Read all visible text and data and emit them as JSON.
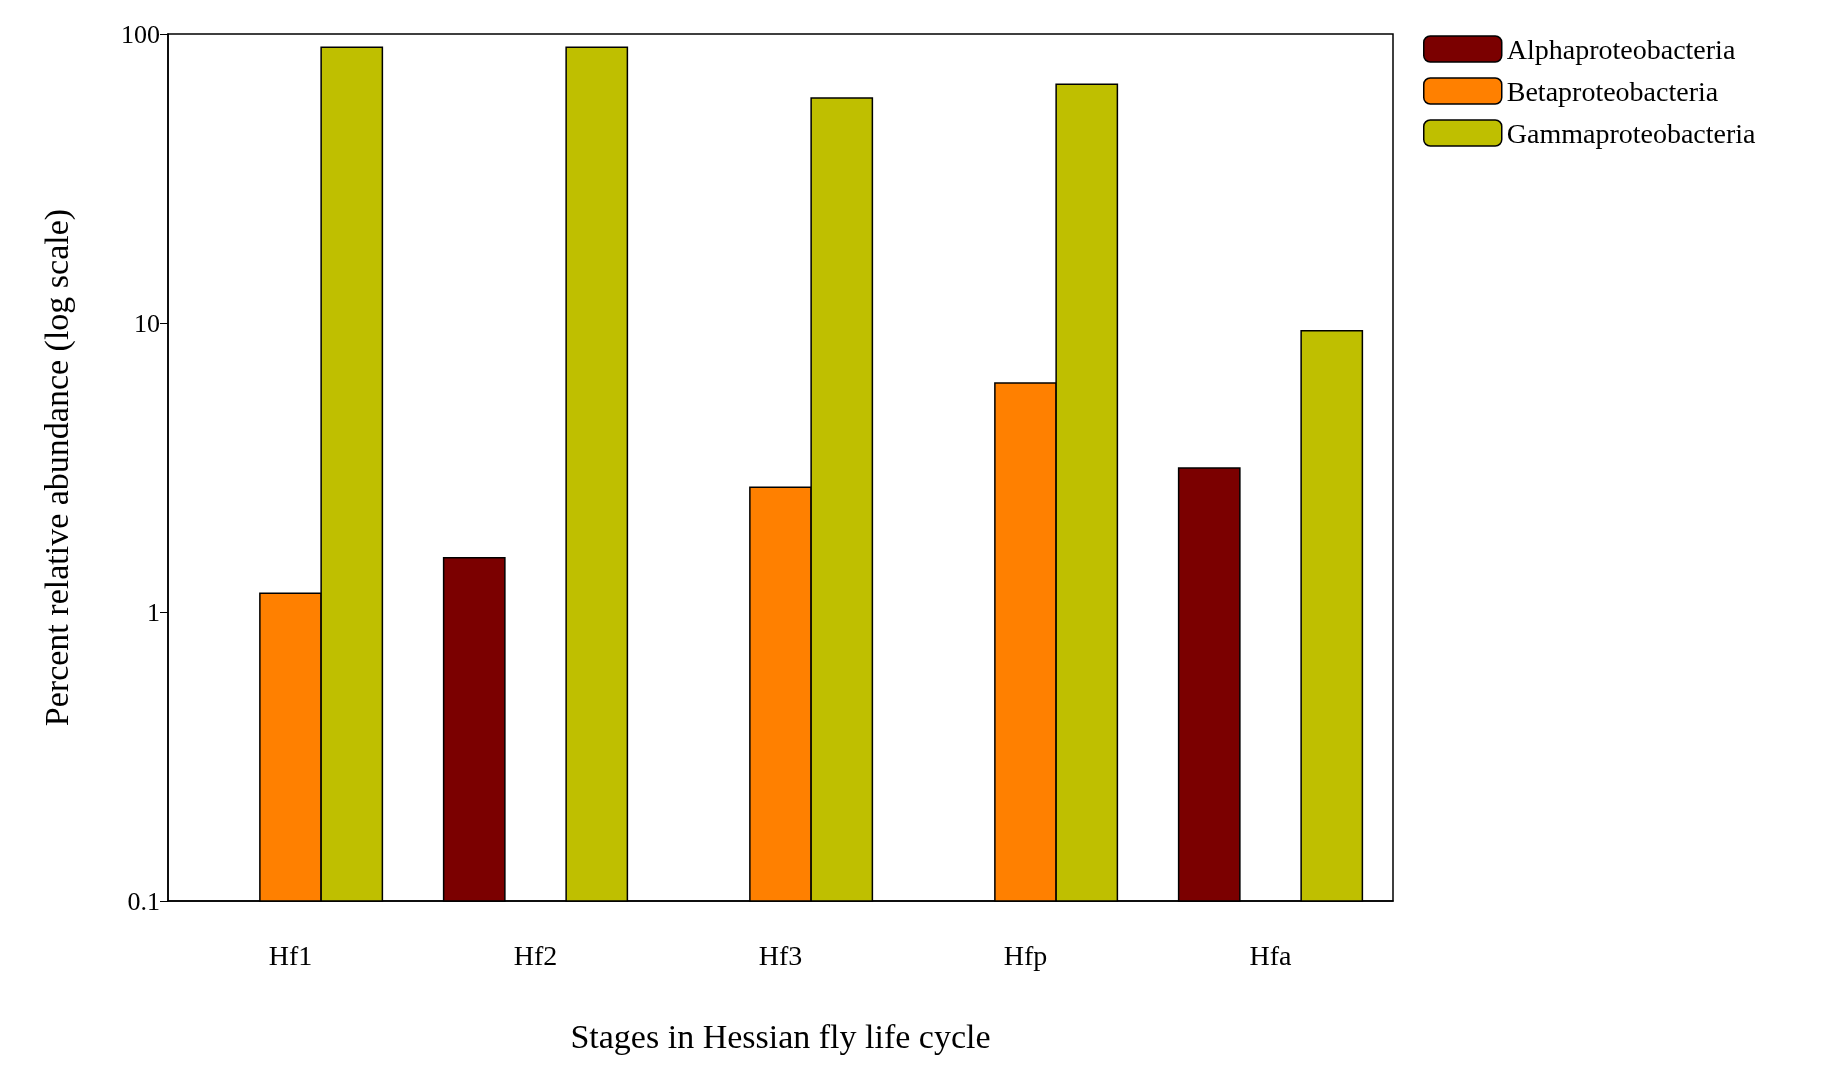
{
  "chart_data": {
    "type": "bar",
    "xlabel": "Stages in Hessian fly life cycle",
    "ylabel": "Percent relative abundance (log scale)",
    "categories": [
      "Hf1",
      "Hf2",
      "Hf3",
      "Hfp",
      "Hfa"
    ],
    "series": [
      {
        "name": "Alphaproteobacteria",
        "color": "#7b0000",
        "values": [
          null,
          1.54,
          null,
          null,
          3.15
        ]
      },
      {
        "name": "Betaproteobacteria",
        "color": "#ff8000",
        "values": [
          1.16,
          null,
          2.7,
          6.2,
          null
        ]
      },
      {
        "name": "Gammaproteobacteria",
        "color": "#bfbf00",
        "values": [
          90,
          90,
          60,
          67,
          9.4
        ]
      }
    ],
    "log": true,
    "ylim": [
      0.1,
      100
    ],
    "yticks": [
      0.1,
      1,
      10,
      100
    ],
    "legend": "top right",
    "grid": false
  }
}
